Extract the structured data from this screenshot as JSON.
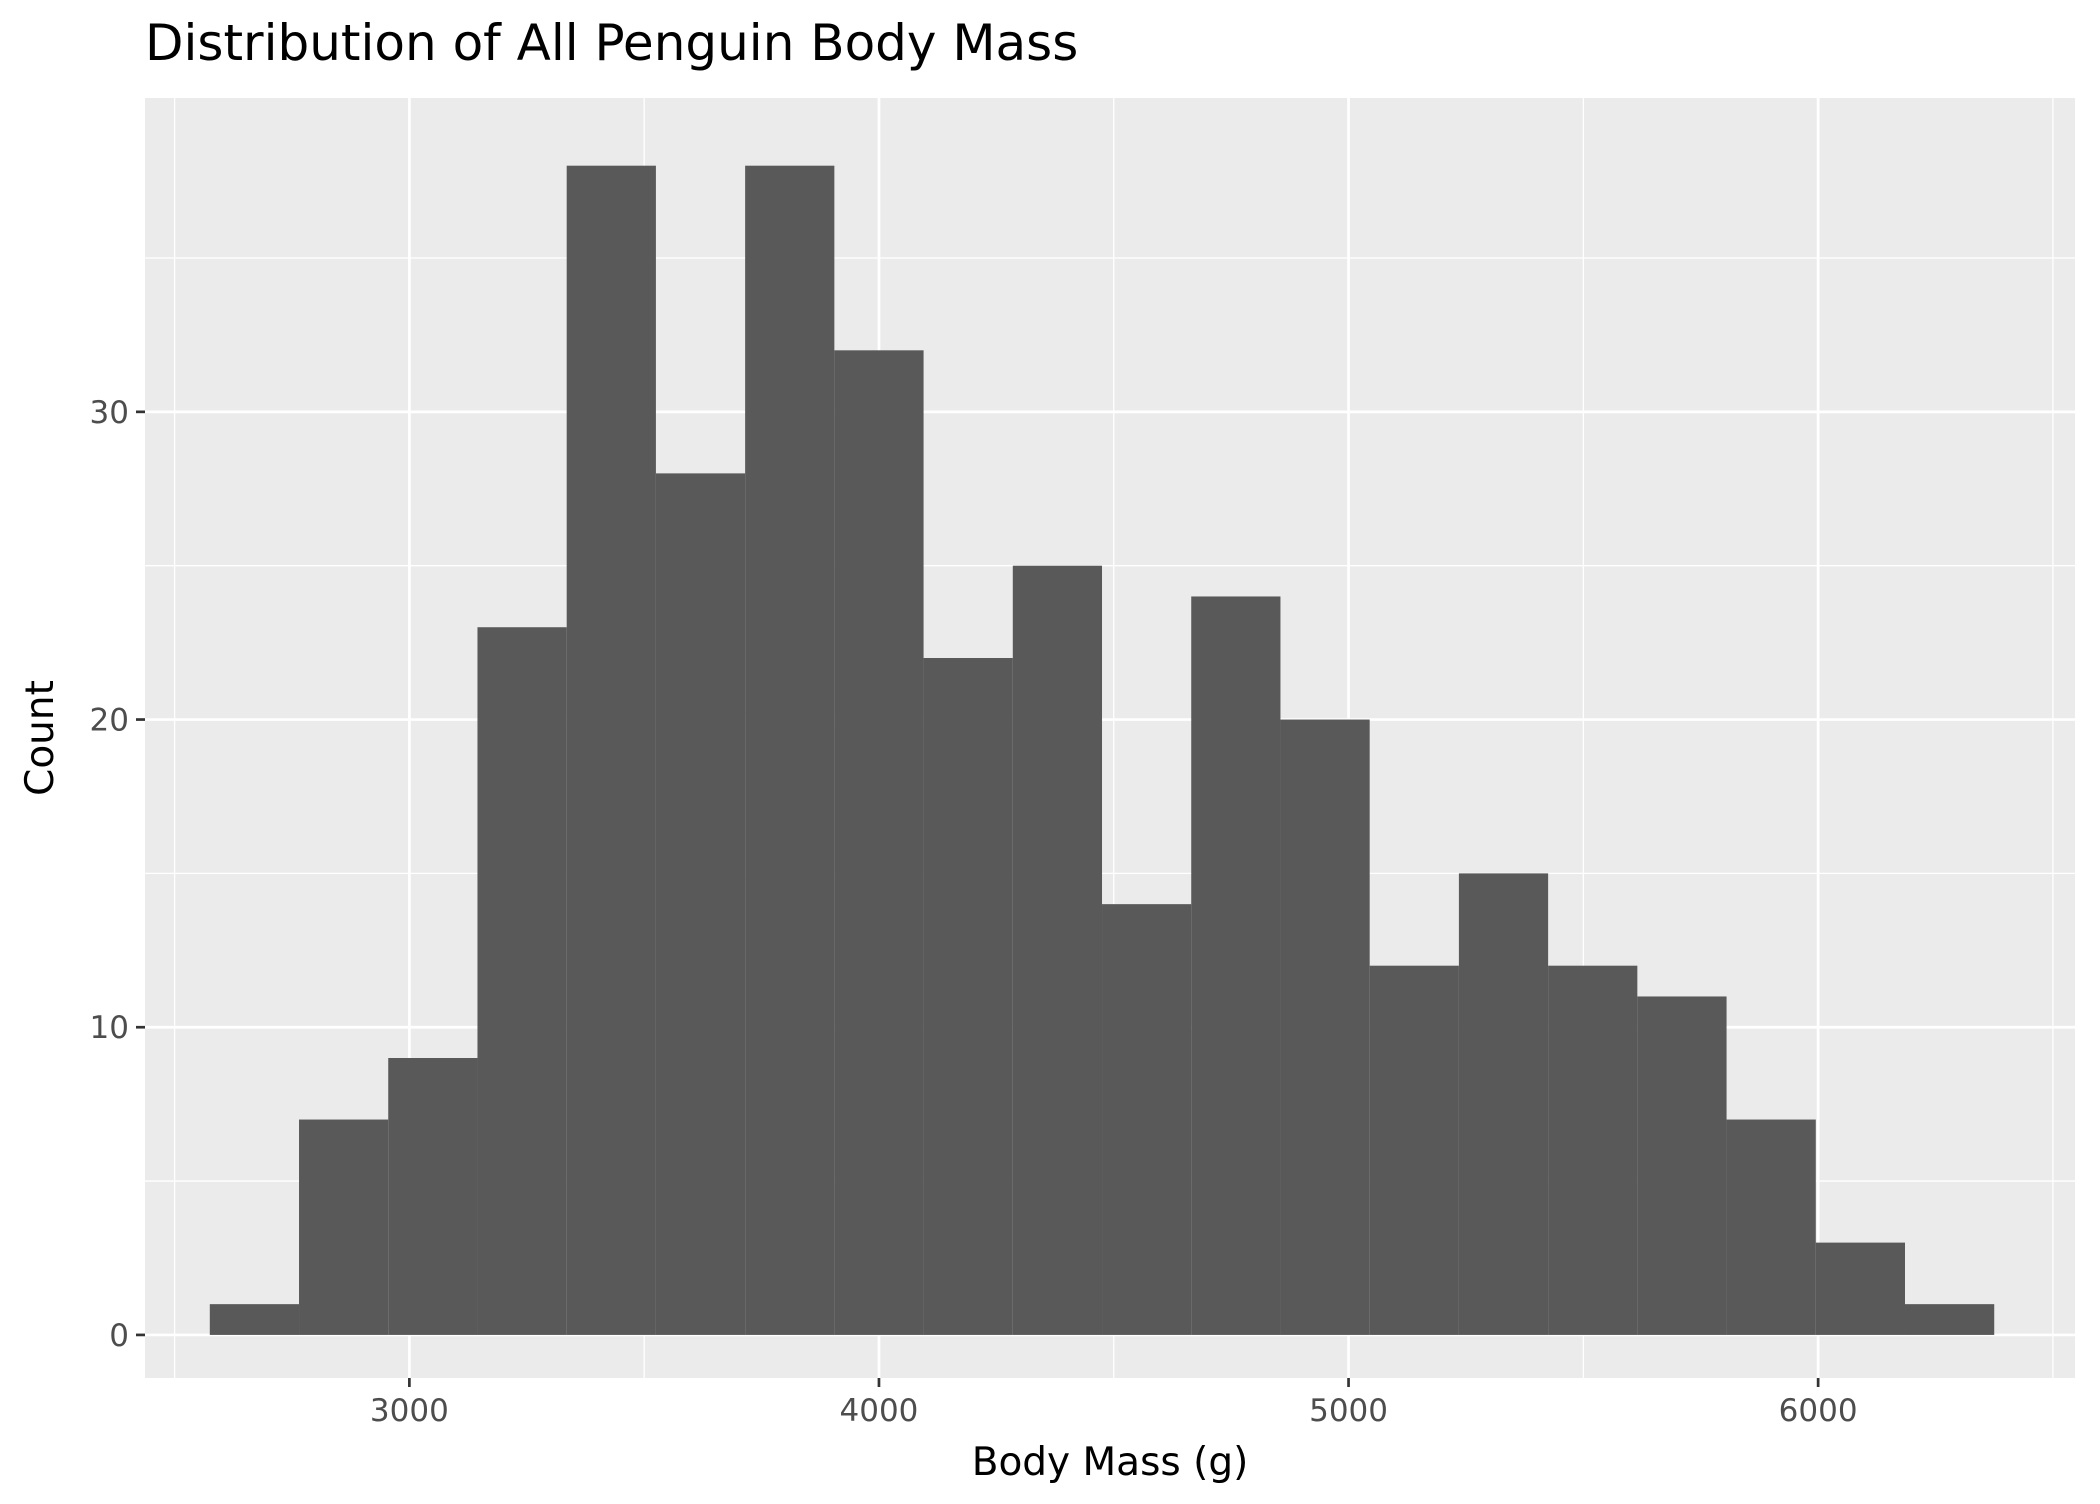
{
  "chart_data": {
    "type": "bar",
    "title": "Distribution of All Penguin Body Mass",
    "xlabel": "Body Mass (g)",
    "ylabel": "Count",
    "xlim": [
      2437,
      6547
    ],
    "ylim": [
      -1.4,
      40.2
    ],
    "x_ticks": [
      3000,
      4000,
      5000,
      6000
    ],
    "x_tick_labels": [
      "3000",
      "4000",
      "5000",
      "6000"
    ],
    "y_ticks": [
      0,
      10,
      20,
      30
    ],
    "y_tick_labels": [
      "0",
      "10",
      "20",
      "30"
    ],
    "x_minor_ticks": [
      2500,
      3500,
      4500,
      5500,
      6500
    ],
    "y_minor_ticks": [
      5,
      15,
      25,
      35
    ],
    "grid": true,
    "bins": {
      "left_edges": [
        2575,
        2765,
        2955,
        3145,
        3335,
        3525,
        3715,
        3905,
        4095,
        4285,
        4475,
        4665,
        4855,
        5045,
        5235,
        5425,
        5615,
        5805,
        5995,
        6185
      ],
      "width": 190,
      "counts": [
        1,
        7,
        9,
        23,
        38,
        28,
        38,
        32,
        22,
        25,
        14,
        24,
        20,
        12,
        15,
        12,
        11,
        7,
        3,
        1
      ]
    },
    "colors": {
      "bar_fill": "#595959",
      "panel_background": "#ebebeb",
      "grid_line": "#ffffff",
      "tick_text": "#4d4d4d",
      "tick_mark": "#333333"
    }
  }
}
